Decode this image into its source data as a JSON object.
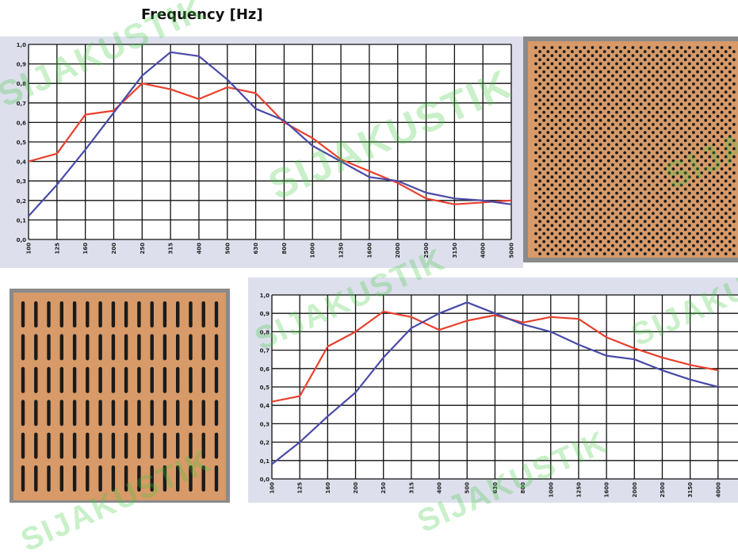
{
  "header": {
    "title": "Frequency [Hz]"
  },
  "watermark": "SIJAKUSTIK",
  "colors": {
    "series1": "#e8402e",
    "series2": "#4a4aa8",
    "plot_bg": "#ffffff",
    "chart_bg": "#dde0ec",
    "panel_orange": "#d79a68",
    "dot": "#1a1a1a"
  },
  "chart_data": [
    {
      "type": "line",
      "x": [
        "100",
        "125",
        "160",
        "200",
        "250",
        "315",
        "400",
        "500",
        "630",
        "800",
        "1000",
        "1250",
        "1600",
        "2000",
        "2500",
        "3150",
        "4000",
        "5000"
      ],
      "ylim": [
        0,
        1.0
      ],
      "yticks": [
        "0,0",
        "0,1",
        "0,2",
        "0,3",
        "0,4",
        "0,5",
        "0,6",
        "0,7",
        "0,8",
        "0,9",
        "1,0"
      ],
      "grid": true,
      "series": [
        {
          "color": "#e8402e",
          "values": [
            0.4,
            0.44,
            0.64,
            0.66,
            0.8,
            0.77,
            0.72,
            0.78,
            0.75,
            0.6,
            0.52,
            0.41,
            0.35,
            0.29,
            0.21,
            0.18,
            0.19,
            0.2
          ]
        },
        {
          "color": "#4a4aa8",
          "values": [
            0.12,
            0.28,
            0.46,
            0.65,
            0.84,
            0.96,
            0.94,
            0.82,
            0.67,
            0.61,
            0.48,
            0.4,
            0.32,
            0.3,
            0.24,
            0.21,
            0.2,
            0.18
          ]
        }
      ]
    },
    {
      "type": "line",
      "x": [
        "100",
        "125",
        "160",
        "200",
        "250",
        "315",
        "400",
        "500",
        "630",
        "800",
        "1000",
        "1250",
        "1600",
        "2000",
        "2500",
        "3150",
        "4000"
      ],
      "ylim": [
        0,
        1.0
      ],
      "yticks": [
        "0,0",
        "0,1",
        "0,2",
        "0,3",
        "0,4",
        "0,5",
        "0,6",
        "0,7",
        "0,8",
        "0,9",
        "1,0"
      ],
      "grid": true,
      "series": [
        {
          "color": "#e8402e",
          "values": [
            0.42,
            0.45,
            0.72,
            0.8,
            0.91,
            0.88,
            0.81,
            0.86,
            0.89,
            0.85,
            0.88,
            0.87,
            0.77,
            0.71,
            0.66,
            0.62,
            0.59
          ]
        },
        {
          "color": "#4a4aa8",
          "values": [
            0.08,
            0.2,
            0.34,
            0.47,
            0.66,
            0.82,
            0.9,
            0.96,
            0.9,
            0.84,
            0.8,
            0.73,
            0.67,
            0.65,
            0.59,
            0.54,
            0.5
          ]
        }
      ]
    }
  ]
}
